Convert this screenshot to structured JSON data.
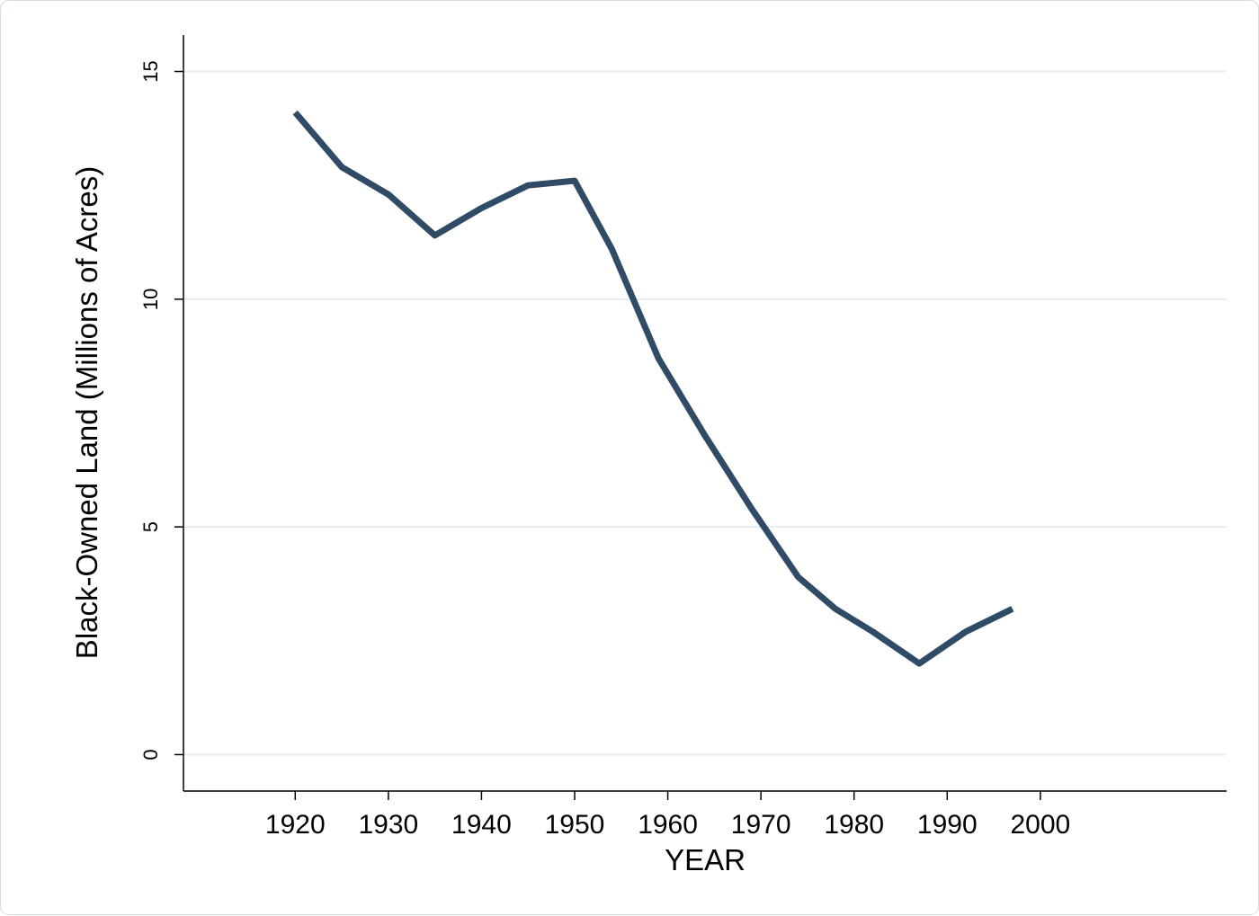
{
  "chart_data": {
    "type": "line",
    "title": "",
    "xlabel": "YEAR",
    "ylabel": "Black-Owned Land (Millions of Acres)",
    "xlim": [
      1908,
      2020
    ],
    "ylim": [
      -0.8,
      15.8
    ],
    "xticks": [
      1920,
      1930,
      1940,
      1950,
      1960,
      1970,
      1980,
      1990,
      2000
    ],
    "yticks": [
      0,
      5,
      10,
      15
    ],
    "grid": "horizontal",
    "line_color": "#2f4b66",
    "grid_color": "#e6ecef",
    "series": [
      {
        "x": [
          1920,
          1925,
          1930,
          1935,
          1940,
          1945,
          1950,
          1954,
          1959,
          1964,
          1969,
          1974,
          1978,
          1982,
          1987,
          1992,
          1997
        ],
        "values": [
          14.1,
          12.9,
          12.3,
          11.4,
          12.0,
          12.5,
          12.6,
          11.1,
          8.7,
          7.0,
          5.4,
          3.9,
          3.2,
          2.7,
          2.0,
          2.7,
          3.2
        ]
      }
    ]
  }
}
